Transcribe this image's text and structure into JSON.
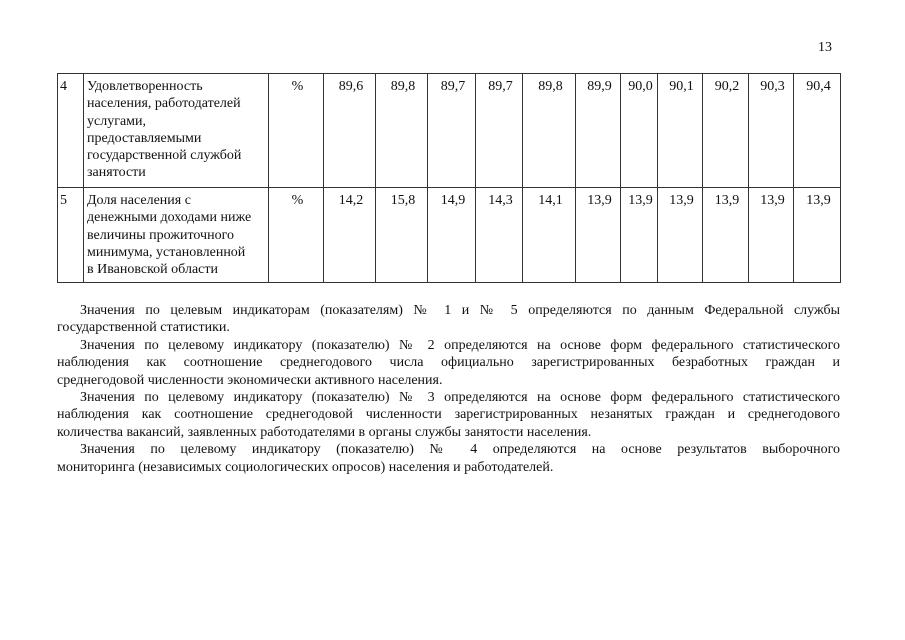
{
  "page_number": "13",
  "table": {
    "rows": [
      {
        "index": "4",
        "name_lines": [
          "Удовлетворенность",
          "населения, работодателей",
          "услугами,",
          "предоставляемыми",
          "государственной службой",
          "занятости"
        ],
        "unit": "%",
        "values": [
          "89,6",
          "89,8",
          "89,7",
          "89,7",
          "89,8",
          "89,9",
          "90,0",
          "90,1",
          "90,2",
          "90,3",
          "90,4"
        ]
      },
      {
        "index": "5",
        "name_lines": [
          "Доля населения с",
          "денежными доходами ниже",
          "величины прожиточного",
          "минимума, установленной",
          "в Ивановской области"
        ],
        "unit": "%",
        "values": [
          "14,2",
          "15,8",
          "14,9",
          "14,3",
          "14,1",
          "13,9",
          "13,9",
          "13,9",
          "13,9",
          "13,9",
          "13,9"
        ]
      }
    ]
  },
  "paragraphs": [
    [
      "Значения по целевым индикаторам (показателям) № 1 и № 5 определяются по данным Федеральной службы",
      "государственной статистики."
    ],
    [
      "Значения по целевому индикатору (показателю) № 2 определяются на основе форм федерального статистического",
      "наблюдения как соотношение среднегодового числа официально зарегистрированных безработных граждан и",
      "среднегодовой численности экономически активного населения."
    ],
    [
      "Значения по целевому индикатору (показателю) № 3 определяются на основе форм федерального статистического",
      "наблюдения как соотношение среднегодовой численности зарегистрированных незанятых граждан и среднегодового",
      "количества вакансий, заявленных работодателями в органы службы занятости населения."
    ],
    [
      "Значения по целевому индикатору (показателю) № 4 определяются на основе результатов выборочного",
      "мониторинга (независимых социологических опросов) населения и работодателей."
    ]
  ]
}
